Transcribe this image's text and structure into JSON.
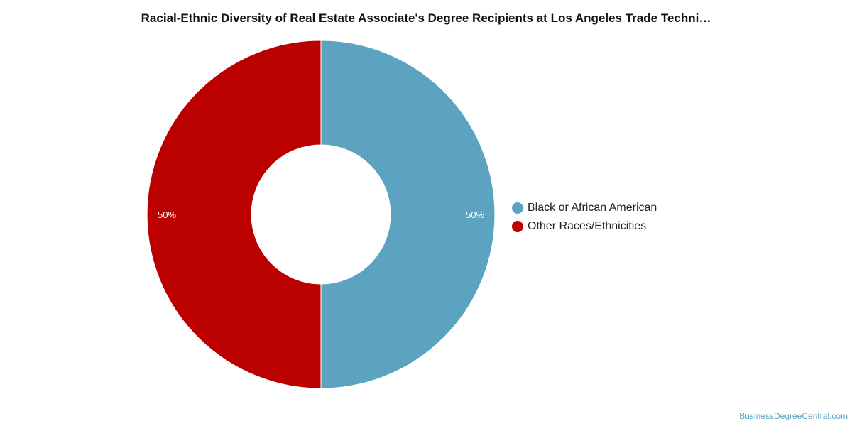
{
  "chart_data": {
    "type": "pie",
    "title": "Racial-Ethnic Diversity of Real Estate Associate's Degree Recipients at Los Angeles Trade Techni…",
    "categories": [
      "Black or African American",
      "Other Races/Ethnicities"
    ],
    "values": [
      50,
      50
    ],
    "labels": [
      "50%",
      "50%"
    ],
    "colors": [
      "#5ba3c0",
      "#bb0000"
    ],
    "legend_position": "right",
    "donut": true
  },
  "credit": "BusinessDegreeCentral.com"
}
